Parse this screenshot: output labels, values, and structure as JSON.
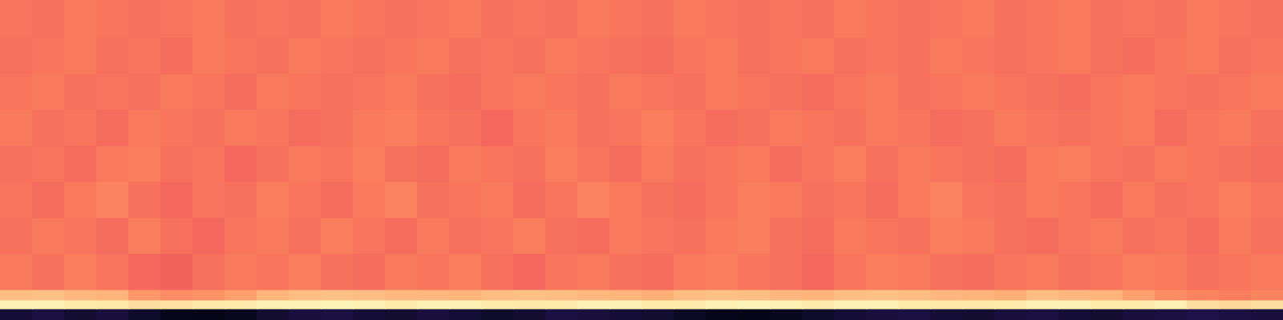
{
  "chart_data": {
    "type": "heatmap",
    "color": "magma",
    "tick_labels": false,
    "grid": false,
    "color_range": [
      0,
      100
    ],
    "xlim": [
      0,
      40
    ],
    "x": [
      0,
      1,
      2,
      3,
      4,
      5,
      6,
      7,
      8,
      9,
      10,
      11,
      12,
      13,
      14,
      15,
      16,
      17,
      18,
      19,
      20,
      21,
      22,
      23,
      24,
      25,
      26,
      27,
      28,
      29,
      30,
      31,
      32,
      33,
      34,
      35,
      36,
      37,
      38,
      39,
      40
    ],
    "ylim": [
      0,
      400
    ],
    "y": [
      0,
      14,
      25,
      38,
      83,
      128,
      173,
      218,
      263,
      308,
      353,
      400
    ],
    "cells": [
      [
        10,
        12,
        9,
        11,
        8,
        5,
        4,
        6,
        9,
        11,
        12,
        10,
        9,
        11,
        10,
        8,
        9,
        12,
        11,
        10,
        9,
        7,
        5,
        4,
        6,
        8,
        10,
        11,
        12,
        10,
        9,
        11,
        12,
        10,
        9,
        11,
        12,
        13,
        12,
        11
      ],
      [
        97,
        97,
        96,
        95,
        93,
        94,
        95,
        96,
        97,
        97,
        98,
        97,
        96,
        97,
        97,
        96,
        95,
        96,
        97,
        97,
        96,
        96,
        97,
        98,
        97,
        96,
        97,
        97,
        96,
        95,
        95,
        96,
        97,
        97,
        96,
        96,
        97,
        93,
        92,
        93
      ],
      [
        86,
        87,
        85,
        84,
        78,
        76,
        77,
        80,
        84,
        86,
        87,
        86,
        85,
        85,
        84,
        86,
        87,
        86,
        85,
        84,
        83,
        86,
        87,
        86,
        85,
        84,
        86,
        87,
        86,
        85,
        84,
        83,
        86,
        85,
        84,
        80,
        76,
        74,
        73,
        74
      ],
      [
        72,
        70,
        73,
        71,
        68,
        67,
        70,
        72,
        71,
        73,
        70,
        69,
        72,
        71,
        73,
        70,
        68,
        71,
        72,
        70,
        69,
        72,
        73,
        71,
        70,
        68,
        71,
        73,
        72,
        70,
        69,
        71,
        72,
        70,
        71,
        73,
        72,
        70,
        71,
        72
      ],
      [
        70,
        72,
        71,
        69,
        73,
        70,
        68,
        71,
        72,
        70,
        73,
        71,
        69,
        72,
        70,
        71,
        73,
        70,
        69,
        72,
        71,
        70,
        72,
        73,
        70,
        69,
        72,
        71,
        70,
        73,
        72,
        70,
        69,
        71,
        72,
        70,
        71,
        69,
        72,
        70
      ],
      [
        71,
        69,
        72,
        74,
        70,
        68,
        71,
        70,
        73,
        71,
        69,
        72,
        74,
        70,
        71,
        72,
        69,
        71,
        74,
        72,
        70,
        69,
        71,
        73,
        72,
        70,
        71,
        69,
        72,
        74,
        71,
        70,
        72,
        71,
        69,
        72,
        70,
        71,
        73,
        71
      ],
      [
        70,
        71,
        69,
        72,
        73,
        70,
        71,
        68,
        70,
        72,
        71,
        73,
        70,
        69,
        72,
        71,
        70,
        73,
        71,
        69,
        72,
        70,
        71,
        72,
        69,
        71,
        73,
        70,
        72,
        71,
        70,
        69,
        72,
        73,
        71,
        70,
        72,
        71,
        70,
        69
      ],
      [
        72,
        70,
        71,
        69,
        72,
        71,
        70,
        72,
        71,
        69,
        70,
        72,
        73,
        71,
        70,
        68,
        71,
        72,
        70,
        71,
        73,
        71,
        69,
        70,
        72,
        71,
        70,
        72,
        71,
        69,
        70,
        72,
        71,
        70,
        71,
        72,
        69,
        71,
        72,
        70
      ],
      [
        71,
        72,
        70,
        71,
        70,
        72,
        71,
        69,
        72,
        71,
        70,
        71,
        72,
        70,
        69,
        71,
        72,
        71,
        70,
        72,
        71,
        70,
        72,
        71,
        70,
        69,
        71,
        72,
        70,
        71,
        72,
        71,
        70,
        69,
        71,
        72,
        71,
        70,
        71,
        72
      ],
      [
        70,
        71,
        72,
        70,
        71,
        69,
        72,
        71,
        70,
        72,
        71,
        70,
        71,
        72,
        70,
        71,
        70,
        72,
        71,
        70,
        69,
        71,
        72,
        70,
        71,
        72,
        70,
        71,
        70,
        72,
        71,
        70,
        71,
        72,
        70,
        69,
        71,
        72,
        70,
        71
      ],
      [
        71,
        70,
        72,
        71,
        70,
        71,
        72,
        70,
        71,
        70,
        72,
        71,
        70,
        71,
        72,
        70,
        71,
        70,
        72,
        71,
        70,
        72,
        71,
        70,
        71,
        70,
        72,
        71,
        70,
        71,
        72,
        70,
        71,
        72,
        70,
        71,
        70,
        72,
        71,
        70
      ]
    ]
  }
}
